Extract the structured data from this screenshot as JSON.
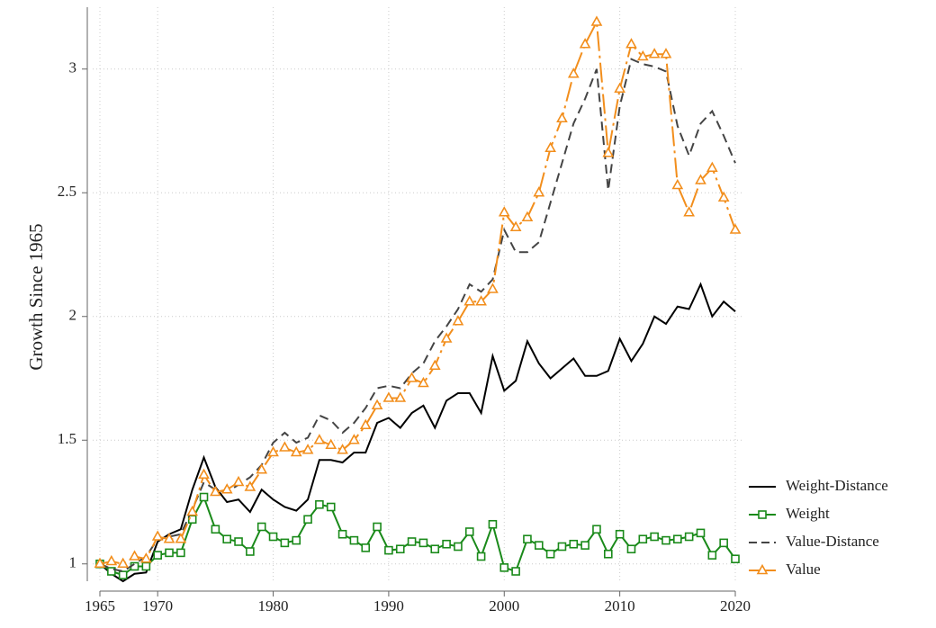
{
  "chart_data": {
    "type": "line",
    "y_label": "Growth Since 1965",
    "x": [
      1965,
      1966,
      1967,
      1968,
      1969,
      1970,
      1971,
      1972,
      1973,
      1974,
      1975,
      1976,
      1977,
      1978,
      1979,
      1980,
      1981,
      1982,
      1983,
      1984,
      1985,
      1986,
      1987,
      1988,
      1989,
      1990,
      1991,
      1992,
      1993,
      1994,
      1995,
      1996,
      1997,
      1998,
      1999,
      2000,
      2001,
      2002,
      2003,
      2004,
      2005,
      2006,
      2007,
      2008,
      2009,
      2010,
      2011,
      2012,
      2013,
      2014,
      2015,
      2016,
      2017,
      2018,
      2019,
      2020
    ],
    "xlim": [
      1965,
      2020
    ],
    "xticks": [
      1965,
      1970,
      1980,
      1990,
      2000,
      2010,
      2020
    ],
    "ylim": [
      0.93,
      3.25
    ],
    "yticks": [
      1,
      1.5,
      2,
      2.5,
      3
    ],
    "grid": true,
    "legend": "lower right",
    "series": [
      {
        "name": "Weight-Distance",
        "color": "#000000",
        "style": "solid",
        "values": [
          1.0,
          0.96,
          0.93,
          0.96,
          0.965,
          1.09,
          1.12,
          1.14,
          1.3,
          1.43,
          1.31,
          1.25,
          1.26,
          1.21,
          1.3,
          1.26,
          1.23,
          1.215,
          1.26,
          1.42,
          1.42,
          1.41,
          1.45,
          1.45,
          1.57,
          1.59,
          1.55,
          1.61,
          1.64,
          1.55,
          1.66,
          1.69,
          1.69,
          1.61,
          1.84,
          1.7,
          1.74,
          1.9,
          1.81,
          1.75,
          1.79,
          1.83,
          1.76,
          1.76,
          1.78,
          1.91,
          1.82,
          1.89,
          2.0,
          1.97,
          2.04,
          2.03,
          2.13,
          2.0,
          2.06,
          2.02
        ]
      },
      {
        "name": "Weight",
        "color": "#1a8a1a",
        "style": "solid",
        "marker": "square",
        "values": [
          1.0,
          0.97,
          0.955,
          0.99,
          0.99,
          1.035,
          1.045,
          1.045,
          1.18,
          1.27,
          1.14,
          1.1,
          1.09,
          1.05,
          1.15,
          1.11,
          1.085,
          1.095,
          1.18,
          1.24,
          1.23,
          1.12,
          1.095,
          1.065,
          1.15,
          1.055,
          1.06,
          1.09,
          1.085,
          1.06,
          1.08,
          1.07,
          1.13,
          1.03,
          1.16,
          0.985,
          0.97,
          1.1,
          1.075,
          1.04,
          1.07,
          1.08,
          1.075,
          1.14,
          1.04,
          1.12,
          1.06,
          1.1,
          1.11,
          1.095,
          1.1,
          1.11,
          1.125,
          1.035,
          1.085,
          1.02
        ]
      },
      {
        "name": "Value-Distance",
        "color": "#444444",
        "style": "dash",
        "values": [
          1.0,
          0.98,
          0.97,
          1.0,
          1.03,
          1.1,
          1.11,
          1.12,
          1.22,
          1.33,
          1.3,
          1.29,
          1.32,
          1.35,
          1.4,
          1.49,
          1.53,
          1.49,
          1.51,
          1.6,
          1.58,
          1.53,
          1.57,
          1.63,
          1.71,
          1.72,
          1.71,
          1.77,
          1.81,
          1.9,
          1.96,
          2.03,
          2.13,
          2.1,
          2.15,
          2.35,
          2.26,
          2.26,
          2.3,
          2.46,
          2.62,
          2.78,
          2.88,
          3.0,
          2.51,
          2.85,
          3.04,
          3.02,
          3.01,
          2.99,
          2.77,
          2.65,
          2.78,
          2.83,
          2.73,
          2.62
        ]
      },
      {
        "name": "Value",
        "color": "#f28e1c",
        "style": "longdash-dot",
        "marker": "triangle",
        "values": [
          1.0,
          1.01,
          1.0,
          1.03,
          1.02,
          1.11,
          1.1,
          1.1,
          1.21,
          1.36,
          1.29,
          1.3,
          1.33,
          1.31,
          1.38,
          1.45,
          1.47,
          1.45,
          1.46,
          1.5,
          1.48,
          1.46,
          1.5,
          1.56,
          1.64,
          1.67,
          1.67,
          1.75,
          1.73,
          1.8,
          1.91,
          1.98,
          2.06,
          2.06,
          2.11,
          2.42,
          2.36,
          2.4,
          2.5,
          2.68,
          2.8,
          2.98,
          3.1,
          3.19,
          2.66,
          2.92,
          3.1,
          3.05,
          3.06,
          3.06,
          2.53,
          2.42,
          2.55,
          2.6,
          2.48,
          2.35
        ]
      }
    ]
  }
}
